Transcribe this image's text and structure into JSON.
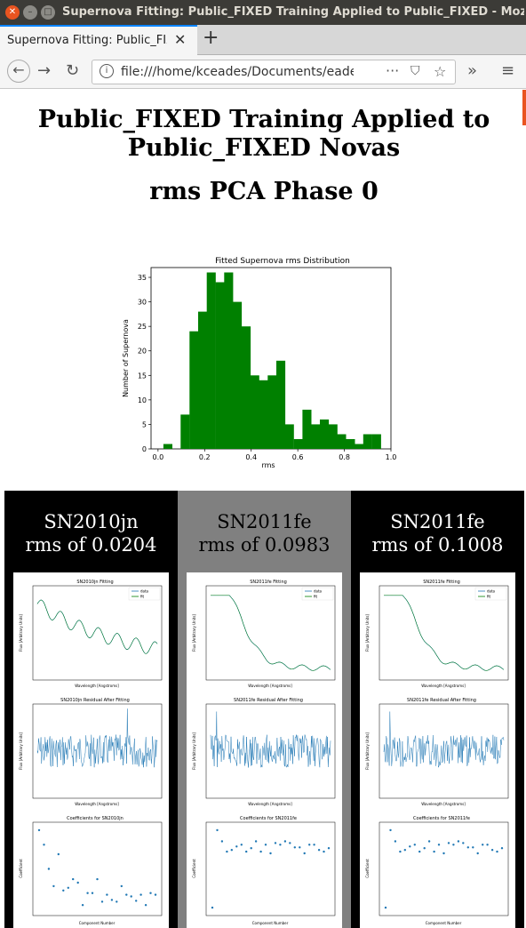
{
  "window": {
    "title": "Supernova Fitting: Public_FIXED Training Applied to Public_FIXED - Mozilla Firefox"
  },
  "tab": {
    "label": "Supernova Fitting: Public_FIXED"
  },
  "navigation": {
    "url": "file:///home/kceades/Documents/eades"
  },
  "page": {
    "heading": "Public_FIXED Training Applied to Public_FIXED Novas",
    "subheading": "rms PCA Phase 0"
  },
  "chart_data": {
    "type": "bar",
    "title": "Fitted Supernova rms Distribution",
    "xlabel": "rms",
    "ylabel": "Number of Supernova",
    "xlim": [
      -0.03,
      1.0
    ],
    "ylim": [
      0,
      37
    ],
    "xticks": [
      0.0,
      0.2,
      0.4,
      0.6,
      0.8,
      1.0
    ],
    "yticks": [
      0,
      5,
      10,
      15,
      20,
      25,
      30,
      35
    ],
    "bin_width": 0.0373,
    "bin_starts": [
      0.023,
      0.06,
      0.097,
      0.135,
      0.172,
      0.209,
      0.247,
      0.284,
      0.321,
      0.359,
      0.396,
      0.433,
      0.471,
      0.508,
      0.545,
      0.583,
      0.62,
      0.657,
      0.695,
      0.732,
      0.769,
      0.807,
      0.844,
      0.881,
      0.919
    ],
    "values": [
      1,
      0,
      7,
      24,
      28,
      36,
      34,
      36,
      30,
      25,
      15,
      14,
      15,
      18,
      5,
      2,
      8,
      5,
      6,
      5,
      3,
      2,
      1,
      3,
      3
    ],
    "color": "#008000"
  },
  "columns": [
    {
      "name": "SN2010jn",
      "rms": "rms of 0.0204",
      "bg": "#000000",
      "fg": "#ffffff",
      "fit_title": "SN2010jn Fitting",
      "resid_title": "SN2010jn Residual After Fitting",
      "coef_title": "Coefficients for SN2010jn"
    },
    {
      "name": "SN2011fe",
      "rms": "rms of 0.0983",
      "bg": "#808080",
      "fg": "#000000",
      "fit_title": "SN2011fe Fitting",
      "resid_title": "SN2011fe Residual After Fitting",
      "coef_title": "Coefficients for SN2011fe"
    },
    {
      "name": "SN2011fe",
      "rms": "rms of 0.1008",
      "bg": "#000000",
      "fg": "#ffffff",
      "fit_title": "SN2011fe Fitting",
      "resid_title": "SN2011fe Residual After Fitting",
      "coef_title": "Coefficients for SN2011fe"
    }
  ],
  "panel_labels": {
    "legend_data": "data",
    "legend_fit": "fit",
    "wavelength": "Wavelength [Angstroms]",
    "flux": "Flux [Arbitrary Units]",
    "component": "Component Number",
    "coefficient": "Coefficient"
  }
}
